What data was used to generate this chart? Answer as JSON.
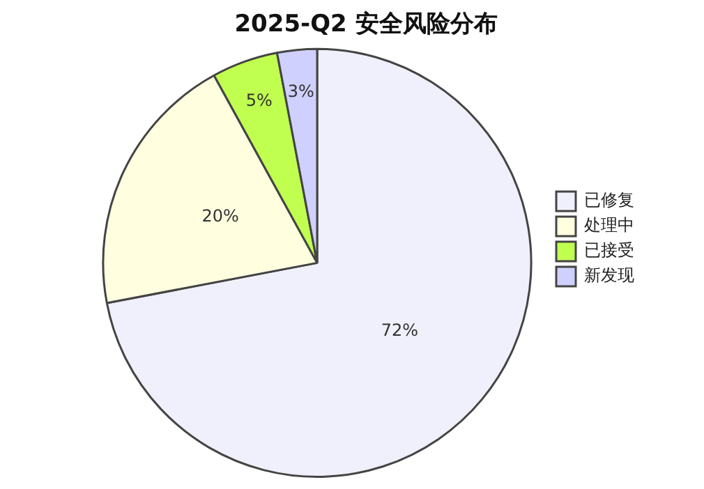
{
  "chart_data": {
    "type": "pie",
    "title": "2025-Q2 安全风险分布",
    "categories": [
      "已修复",
      "处理中",
      "已接受",
      "新发现"
    ],
    "values": [
      72,
      20,
      5,
      3
    ],
    "colors": [
      "#f0f0fc",
      "#ffffe0",
      "#c0ff50",
      "#d0d0ff"
    ],
    "value_labels": [
      "72%",
      "20%",
      "5%",
      "3%"
    ],
    "legend": "right"
  }
}
